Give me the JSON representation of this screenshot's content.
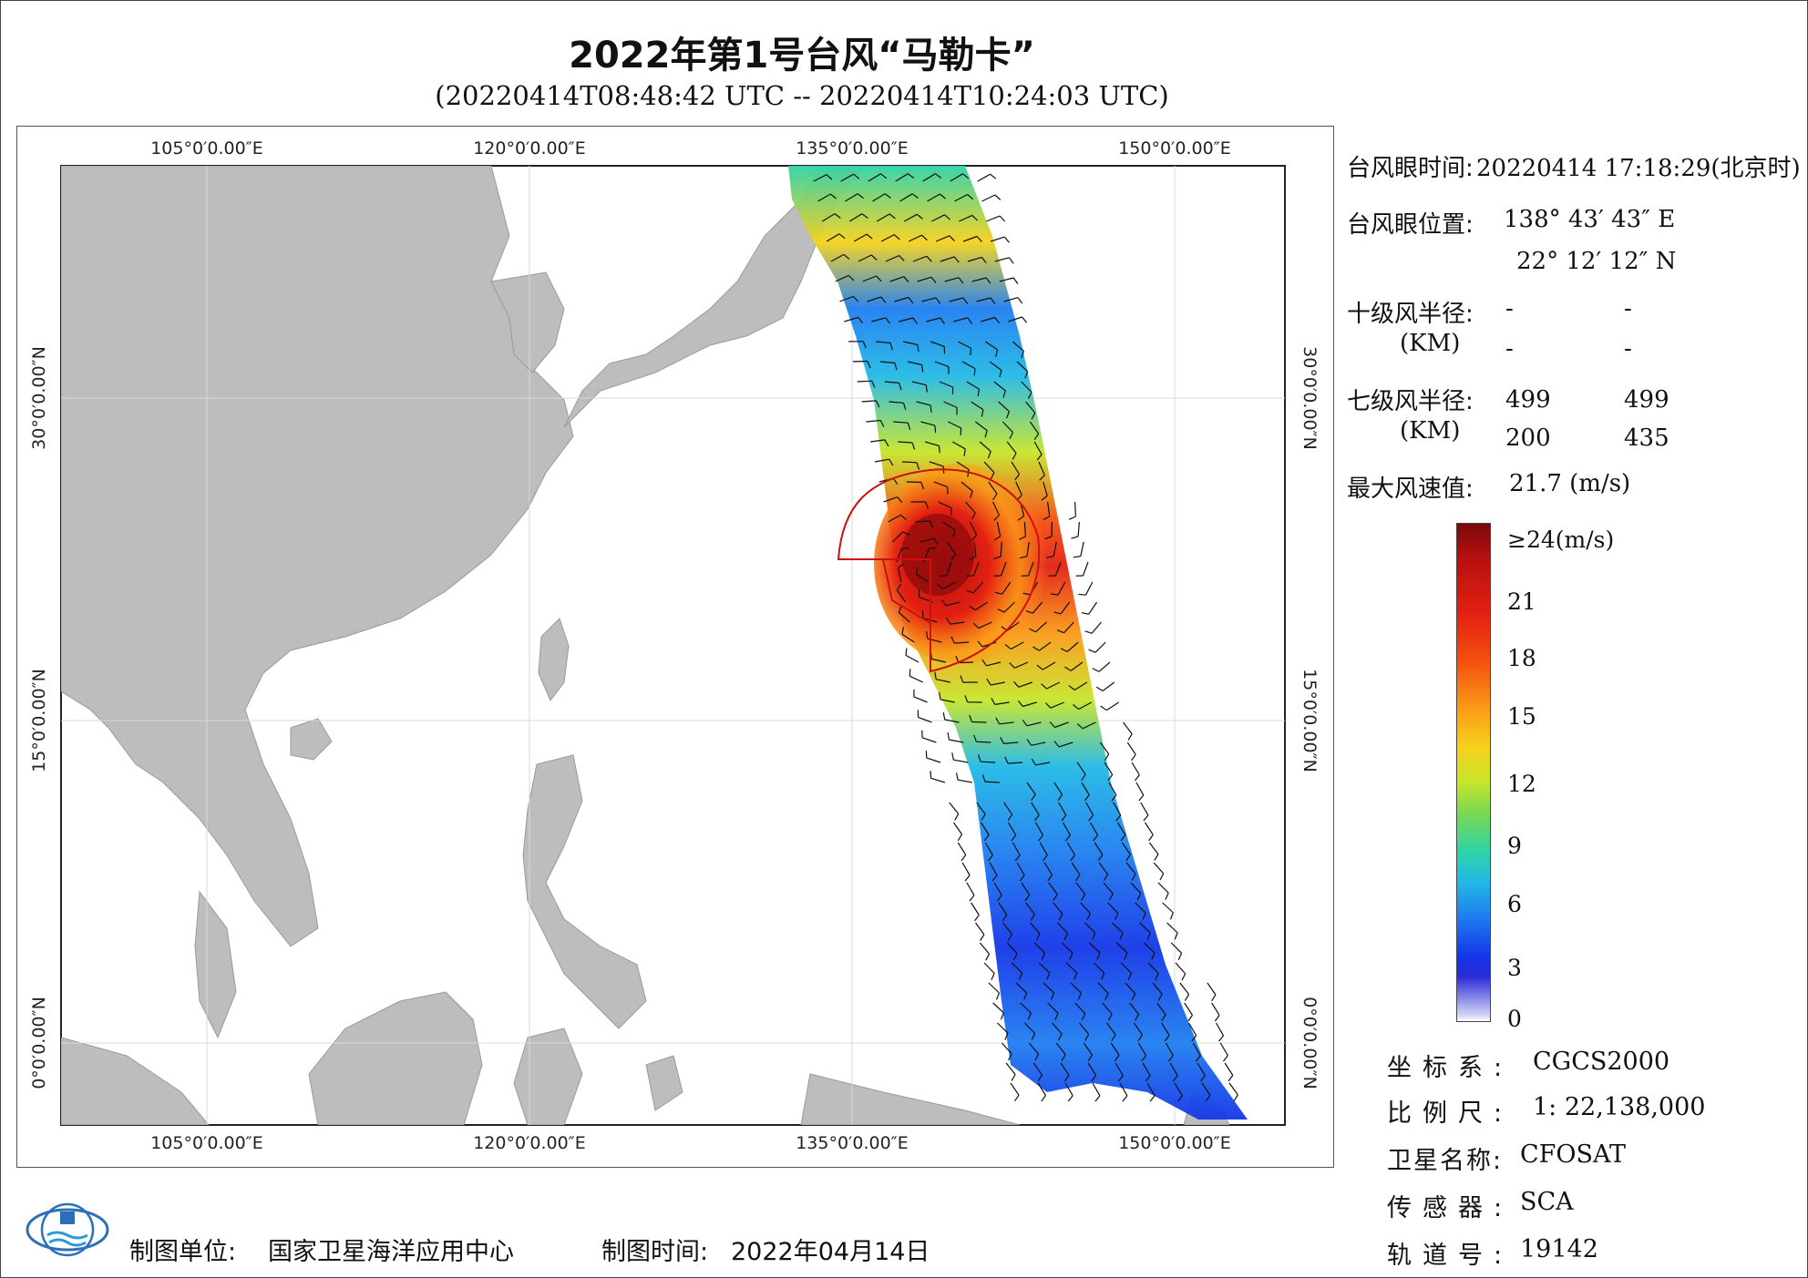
{
  "title": "2022年第1号台风“马勒卡”",
  "subtitle": "(20220414T08:48:42 UTC -- 20220414T10:24:03 UTC)",
  "axes": {
    "lon_labels": [
      "105°0′0.00″E",
      "120°0′0.00″E",
      "135°0′0.00″E",
      "150°0′0.00″E"
    ],
    "lat_labels": [
      "30°0′0.00″N",
      "15°0′0.00″N",
      "0°0′0.00″N"
    ]
  },
  "typhoon_info": {
    "eye_time_label": "台风眼时间:",
    "eye_time_value": "20220414 17:18:29(北京时)",
    "eye_pos_label": "台风眼位置:",
    "eye_lon": "138° 43′ 43″ E",
    "eye_lat": "22° 12′ 12″ N",
    "r10_label": "十级风半径:",
    "r10_unit": "(KM)",
    "r10_values": [
      "-",
      "-",
      "-",
      "-"
    ],
    "r7_label": "七级风半径:",
    "r7_unit": "(KM)",
    "r7_values": [
      "499",
      "499",
      "200",
      "435"
    ],
    "max_wind_label": "最大风速值:",
    "max_wind_value": "21.7  (m/s)"
  },
  "colorbar": {
    "ticks": [
      "≥24(m/s)",
      "21",
      "18",
      "15",
      "12",
      "9",
      "6",
      "3",
      "0"
    ],
    "colors": [
      "#7a0a0a",
      "#e32012",
      "#fb9a17",
      "#f5d21c",
      "#7bd94f",
      "#22b9e6",
      "#1f7ef0",
      "#1436e8",
      "#ffffff"
    ]
  },
  "meta": {
    "crs_label": "坐标系:",
    "crs_value": "CGCS2000",
    "scale_label": "比例尺:",
    "scale_value": "1: 22,138,000",
    "sat_label": "卫星名称:",
    "sat_value": "CFOSAT",
    "sensor_label": "传感器:",
    "sensor_value": "SCA",
    "orbit_label": "轨道号:",
    "orbit_value": "19142"
  },
  "footer": {
    "org_label": "制图单位:",
    "org_value": "国家卫星海洋应用中心",
    "date_label": "制图时间:",
    "date_value": "2022年04月14日"
  },
  "colors": {
    "land": "#bdbdbd",
    "ocean": "#ffffff",
    "wind_radius": "#d01010",
    "barb": "#111111"
  }
}
